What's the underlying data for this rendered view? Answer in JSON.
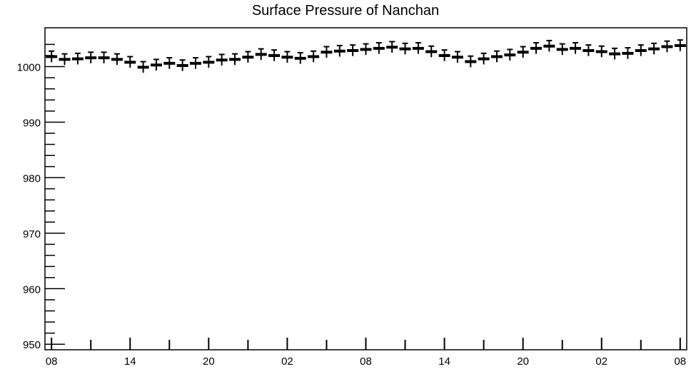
{
  "chart_data": {
    "type": "scatter",
    "title": "Surface Pressure of Nanchan",
    "xlabel": "",
    "ylabel": "",
    "ylim": [
      949,
      1007
    ],
    "y_ticks": [
      "950",
      "960",
      "970",
      "980",
      "990",
      "1000"
    ],
    "x_tick_labels": [
      "08",
      "14",
      "20",
      "02",
      "08",
      "14",
      "20",
      "02",
      "08"
    ],
    "x_unit": "hours since first observation (3-hourly)",
    "xlim": [
      -1,
      97
    ],
    "marker_color": "#000000",
    "error_bar": 1.0,
    "series": [
      {
        "values": [
          1001.8,
          1001.3,
          1001.4,
          1001.6,
          1001.6,
          1001.3,
          1000.8,
          999.9,
          1000.3,
          1000.6,
          1000.2,
          1000.6,
          1000.8,
          1001.2,
          1001.3,
          1001.7,
          1002.2,
          1002.0,
          1001.7,
          1001.5,
          1001.8,
          1002.6,
          1002.8,
          1002.9,
          1003.1,
          1003.3,
          1003.5,
          1003.2,
          1003.3,
          1002.7,
          1002.0,
          1001.7,
          1000.9,
          1001.4,
          1001.8,
          1002.1,
          1002.6,
          1003.3,
          1003.7,
          1003.1,
          1003.3,
          1002.9,
          1002.7,
          1002.3,
          1002.4,
          1002.9,
          1003.2,
          1003.6,
          1003.8
        ]
      }
    ]
  }
}
